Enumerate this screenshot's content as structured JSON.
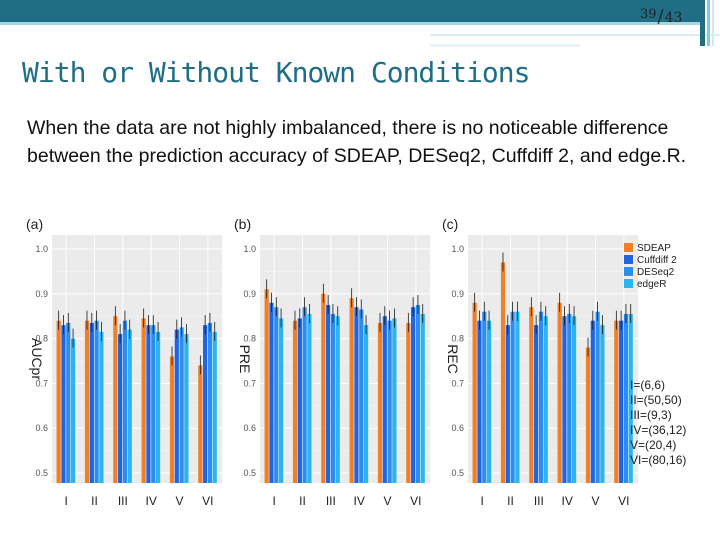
{
  "slide": {
    "page_current": "39",
    "page_total": "43",
    "title": "With or Without Known Conditions",
    "body": "When the data are not highly imbalanced, there is no noticeable difference between the prediction accuracy of SDEAP, DESeq2, Cuffdiff 2, and edge.R."
  },
  "colors": {
    "header": "#1f6e86",
    "title": "#1f6e86",
    "SDEAP": "#f07f2a",
    "Cuffdiff 2": "#1f65e0",
    "DESeq2": "#2b8cf2",
    "edgeR": "#27b6ee"
  },
  "chart_data": [
    {
      "type": "bar",
      "panel": "(a)",
      "ylabel": "AUCpr",
      "ylim": [
        0.5,
        1.0
      ],
      "yticks": [
        "0.5",
        "0.6",
        "0.7",
        "0.8",
        "0.9",
        "1.0"
      ],
      "categories": [
        "I",
        "II",
        "III",
        "IV",
        "V",
        "VI"
      ],
      "series": [
        {
          "name": "SDEAP",
          "values": [
            0.84,
            0.84,
            0.85,
            0.845,
            0.76,
            0.74
          ]
        },
        {
          "name": "Cuffdiff 2",
          "values": [
            0.83,
            0.835,
            0.81,
            0.83,
            0.82,
            0.83
          ]
        },
        {
          "name": "DESeq2",
          "values": [
            0.835,
            0.84,
            0.84,
            0.83,
            0.825,
            0.835
          ]
        },
        {
          "name": "edgeR",
          "values": [
            0.8,
            0.815,
            0.82,
            0.815,
            0.81,
            0.815
          ]
        }
      ]
    },
    {
      "type": "bar",
      "panel": "(b)",
      "ylabel": "PRE",
      "ylim": [
        0.5,
        1.0
      ],
      "yticks": [
        "0.5",
        "0.6",
        "0.7",
        "0.8",
        "0.9",
        "1.0"
      ],
      "categories": [
        "I",
        "II",
        "III",
        "IV",
        "V",
        "VI"
      ],
      "series": [
        {
          "name": "SDEAP",
          "values": [
            0.91,
            0.84,
            0.9,
            0.89,
            0.835,
            0.835
          ]
        },
        {
          "name": "Cuffdiff 2",
          "values": [
            0.88,
            0.845,
            0.875,
            0.87,
            0.85,
            0.87
          ]
        },
        {
          "name": "DESeq2",
          "values": [
            0.87,
            0.87,
            0.855,
            0.865,
            0.84,
            0.875
          ]
        },
        {
          "name": "edgeR",
          "values": [
            0.845,
            0.855,
            0.85,
            0.83,
            0.845,
            0.855
          ]
        }
      ]
    },
    {
      "type": "bar",
      "panel": "(c)",
      "ylabel": "REC",
      "ylim": [
        0.5,
        1.0
      ],
      "yticks": [
        "0.5",
        "0.6",
        "0.7",
        "0.8",
        "0.9",
        "1.0"
      ],
      "categories": [
        "I",
        "II",
        "III",
        "IV",
        "V",
        "VI"
      ],
      "series": [
        {
          "name": "SDEAP",
          "values": [
            0.88,
            0.97,
            0.87,
            0.88,
            0.78,
            0.84
          ]
        },
        {
          "name": "Cuffdiff 2",
          "values": [
            0.84,
            0.83,
            0.83,
            0.85,
            0.84,
            0.84
          ]
        },
        {
          "name": "DESeq2",
          "values": [
            0.86,
            0.86,
            0.86,
            0.855,
            0.86,
            0.855
          ]
        },
        {
          "name": "edgeR",
          "values": [
            0.84,
            0.86,
            0.85,
            0.85,
            0.83,
            0.855
          ]
        }
      ]
    }
  ],
  "legend": [
    "SDEAP",
    "Cuffdiff 2",
    "DESeq2",
    "edgeR"
  ],
  "conditions": [
    "I=(6,6)",
    "II=(50,50)",
    "III=(9,3)",
    "IV=(36,12)",
    "V=(20,4)",
    "VI=(80,16)"
  ]
}
